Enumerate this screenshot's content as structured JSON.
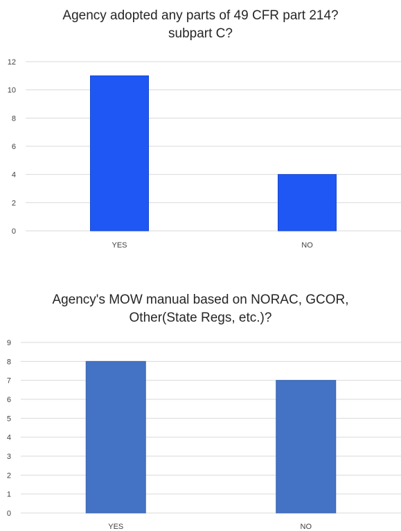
{
  "chart_data": [
    {
      "type": "bar",
      "title_lines": [
        "Agency adopted any parts of 49 CFR part 214?",
        "subpart C?"
      ],
      "categories": [
        "YES",
        "NO"
      ],
      "values": [
        11,
        4
      ],
      "ylim": [
        0,
        12
      ],
      "yticks": [
        0,
        2,
        4,
        6,
        8,
        10,
        12
      ],
      "grid": true,
      "legend": "none",
      "bar_color": "#1f57f5",
      "bar_edge_color": "#1a48cc"
    },
    {
      "type": "bar",
      "title_lines": [
        "Agency's MOW manual based on NORAC, GCOR,",
        "Other(State Regs, etc.)?"
      ],
      "categories": [
        "YES",
        "NO"
      ],
      "values": [
        8,
        7
      ],
      "ylim": [
        0,
        9
      ],
      "yticks": [
        0,
        1,
        2,
        3,
        4,
        5,
        6,
        7,
        8,
        9
      ],
      "grid": true,
      "legend": "none",
      "bar_color": "#4472c4",
      "bar_edge_color": "#3b64ad"
    }
  ],
  "colors": {
    "gridline": "#d9d9d9",
    "axis_text": "#404040",
    "title_text": "#262626"
  }
}
